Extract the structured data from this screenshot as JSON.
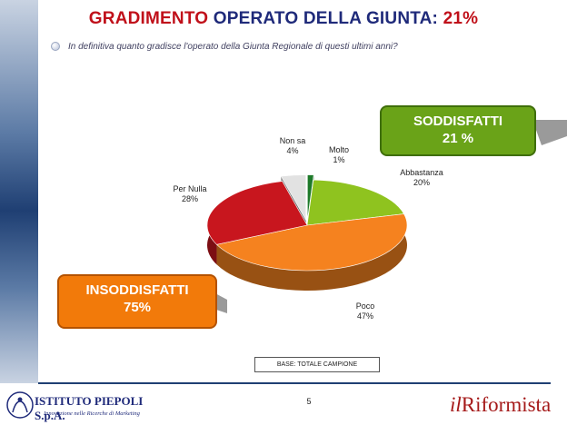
{
  "title": {
    "part1": "GRADIMENTO",
    "part2": " OPERATO DELLA GIUNTA: ",
    "part3": "21%"
  },
  "question": "In definitiva quanto gradisce l'operato della Giunta Regionale di questi ultimi anni?",
  "chart_data": {
    "type": "pie",
    "slices": [
      {
        "label": "Molto",
        "value": 1,
        "value_label": "1%",
        "color": "#1e7a2a"
      },
      {
        "label": "Abbastanza",
        "value": 20,
        "value_label": "20%",
        "color": "#8fc31f"
      },
      {
        "label": "Poco",
        "value": 47,
        "value_label": "47%",
        "color": "#f5821f"
      },
      {
        "label": "Per Nulla",
        "value": 28,
        "value_label": "28%",
        "color": "#c8161e"
      },
      {
        "label": "Non sa",
        "value": 4,
        "value_label": "4%",
        "color": "#e2e2e2"
      }
    ]
  },
  "callouts": {
    "satisfied": {
      "label": "SODDISFATTI",
      "value": "21 %"
    },
    "dissatisfied": {
      "label": "INSODDISFATTI",
      "value": "75%"
    }
  },
  "base": "BASE: TOTALE CAMPIONE",
  "page_number": "5",
  "logos": {
    "left_name": "ISTITUTO PIEPOLI S.p.A.",
    "left_tagline": "Innovazione nelle Ricerche di Marketing",
    "right_il": "il",
    "right_name": "Riformista"
  }
}
